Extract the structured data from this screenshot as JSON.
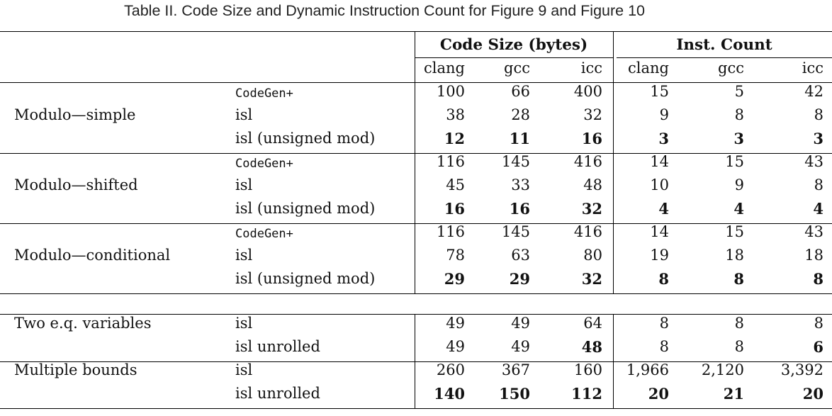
{
  "caption": "Table II. Code Size and Dynamic Instruction Count for Figure 9 and Figure 10",
  "headers": {
    "group1": "Code Size (bytes)",
    "group2": "Inst. Count",
    "cols": [
      "clang",
      "gcc",
      "icc",
      "clang",
      "gcc",
      "icc"
    ]
  },
  "groups": [
    {
      "name": "Modulo—simple",
      "rows": [
        {
          "method": "CodeGen+",
          "mono": true,
          "values": [
            "100",
            "66",
            "400",
            "15",
            "5",
            "42"
          ],
          "bold": [
            false,
            false,
            false,
            false,
            false,
            false
          ]
        },
        {
          "method": "isl",
          "mono": false,
          "values": [
            "38",
            "28",
            "32",
            "9",
            "8",
            "8"
          ],
          "bold": [
            false,
            false,
            false,
            false,
            false,
            false
          ]
        },
        {
          "method": "isl (unsigned mod)",
          "mono": false,
          "values": [
            "12",
            "11",
            "16",
            "3",
            "3",
            "3"
          ],
          "bold": [
            true,
            true,
            true,
            true,
            true,
            true
          ]
        }
      ]
    },
    {
      "name": "Modulo—shifted",
      "rows": [
        {
          "method": "CodeGen+",
          "mono": true,
          "values": [
            "116",
            "145",
            "416",
            "14",
            "15",
            "43"
          ],
          "bold": [
            false,
            false,
            false,
            false,
            false,
            false
          ]
        },
        {
          "method": "isl",
          "mono": false,
          "values": [
            "45",
            "33",
            "48",
            "10",
            "9",
            "8"
          ],
          "bold": [
            false,
            false,
            false,
            false,
            false,
            false
          ]
        },
        {
          "method": "isl (unsigned mod)",
          "mono": false,
          "values": [
            "16",
            "16",
            "32",
            "4",
            "4",
            "4"
          ],
          "bold": [
            true,
            true,
            true,
            true,
            true,
            true
          ]
        }
      ]
    },
    {
      "name": "Modulo—conditional",
      "rows": [
        {
          "method": "CodeGen+",
          "mono": true,
          "values": [
            "116",
            "145",
            "416",
            "14",
            "15",
            "43"
          ],
          "bold": [
            false,
            false,
            false,
            false,
            false,
            false
          ]
        },
        {
          "method": "isl",
          "mono": false,
          "values": [
            "78",
            "63",
            "80",
            "19",
            "18",
            "18"
          ],
          "bold": [
            false,
            false,
            false,
            false,
            false,
            false
          ]
        },
        {
          "method": "isl (unsigned mod)",
          "mono": false,
          "values": [
            "29",
            "29",
            "32",
            "8",
            "8",
            "8"
          ],
          "bold": [
            true,
            true,
            true,
            true,
            true,
            true
          ]
        }
      ]
    },
    {
      "name": "Two e.q. variables",
      "rows": [
        {
          "method": "isl",
          "mono": false,
          "values": [
            "49",
            "49",
            "64",
            "8",
            "8",
            "8"
          ],
          "bold": [
            false,
            false,
            false,
            false,
            false,
            false
          ]
        },
        {
          "method": "isl unrolled",
          "mono": false,
          "values": [
            "49",
            "49",
            "48",
            "8",
            "8",
            "6"
          ],
          "bold": [
            false,
            false,
            true,
            false,
            false,
            true
          ]
        }
      ]
    },
    {
      "name": "Multiple bounds",
      "rows": [
        {
          "method": "isl",
          "mono": false,
          "values": [
            "260",
            "367",
            "160",
            "1,966",
            "2,120",
            "3,392"
          ],
          "bold": [
            false,
            false,
            false,
            false,
            false,
            false
          ]
        },
        {
          "method": "isl unrolled",
          "mono": false,
          "values": [
            "140",
            "150",
            "112",
            "20",
            "21",
            "20"
          ],
          "bold": [
            true,
            true,
            true,
            true,
            true,
            true
          ]
        }
      ]
    }
  ]
}
